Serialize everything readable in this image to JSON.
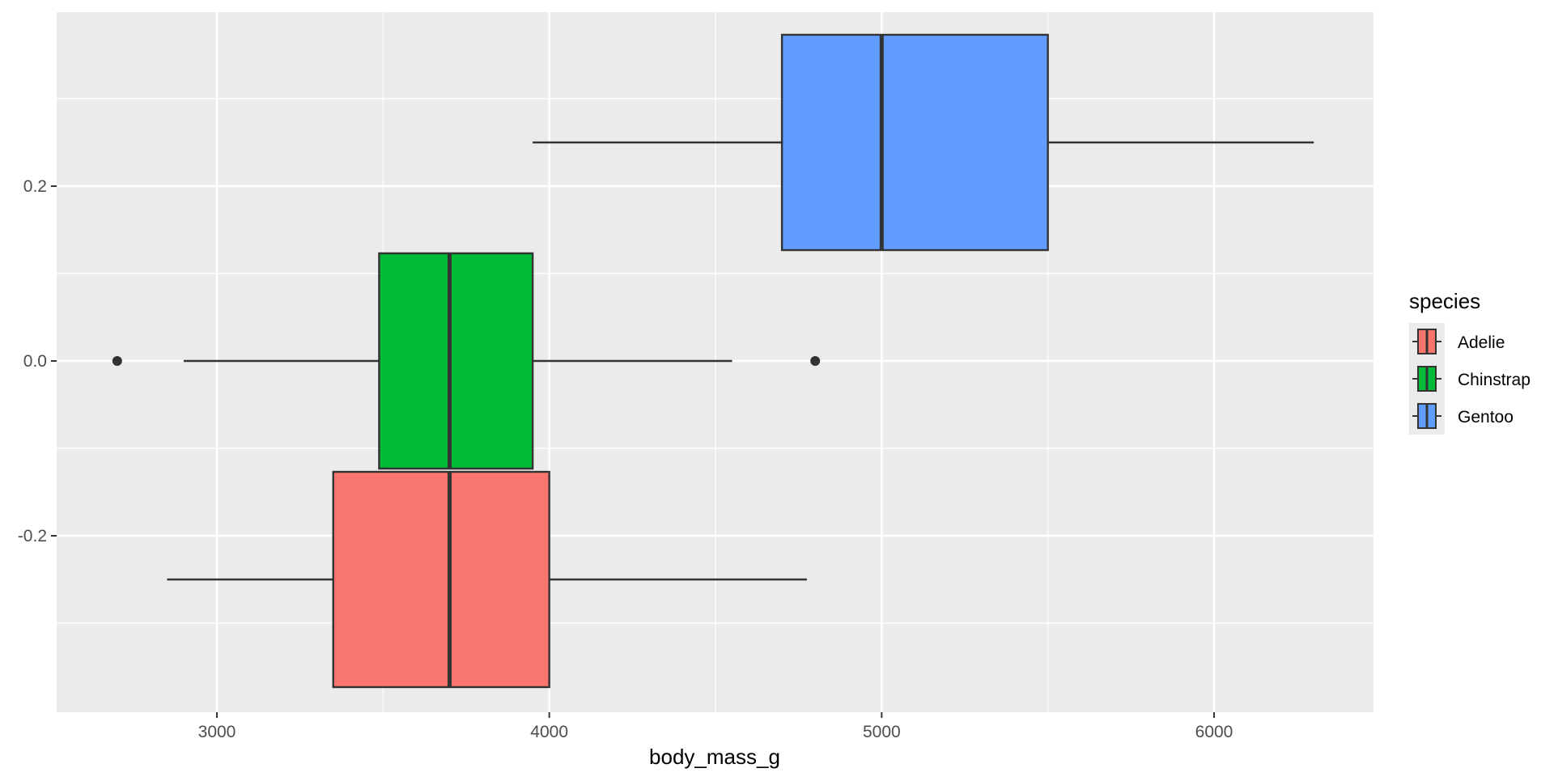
{
  "chart_data": {
    "type": "boxplot",
    "orientation": "horizontal",
    "title": "",
    "xlabel": "body_mass_g",
    "ylabel": "",
    "xlim": [
      2500,
      6500
    ],
    "ylim": [
      -0.4,
      0.4
    ],
    "x_ticks": [
      3000,
      4000,
      5000,
      6000
    ],
    "x_tick_labels": [
      "3000",
      "4000",
      "5000",
      "6000"
    ],
    "y_ticks": [
      -0.2,
      0.0,
      0.2
    ],
    "y_tick_labels": [
      "-0.2",
      "0.0",
      "0.2"
    ],
    "grid": true,
    "legend": {
      "title": "species",
      "position": "right",
      "entries": [
        "Adelie",
        "Chinstrap",
        "Gentoo"
      ]
    },
    "series": [
      {
        "name": "Adelie",
        "color": "#F8766D",
        "y_range": [
          -0.375,
          -0.125
        ],
        "whisker_low": 2850,
        "q1": 3350,
        "median": 3700,
        "q3": 4000,
        "whisker_high": 4775,
        "outliers": []
      },
      {
        "name": "Chinstrap",
        "color": "#00BA38",
        "y_range": [
          -0.125,
          0.125
        ],
        "whisker_low": 2900,
        "q1": 3488,
        "median": 3700,
        "q3": 3950,
        "whisker_high": 4550,
        "outliers": [
          2700,
          4800
        ]
      },
      {
        "name": "Gentoo",
        "color": "#619CFF",
        "y_range": [
          0.125,
          0.375
        ],
        "whisker_low": 3950,
        "q1": 4700,
        "median": 5000,
        "q3": 5500,
        "whisker_high": 6300,
        "outliers": []
      }
    ]
  },
  "colors": {
    "panel_background": "#EBEBEB",
    "grid_major": "#FFFFFF",
    "box_outline": "#333333",
    "axis_text": "#4D4D4D",
    "title_text": "#000000"
  }
}
